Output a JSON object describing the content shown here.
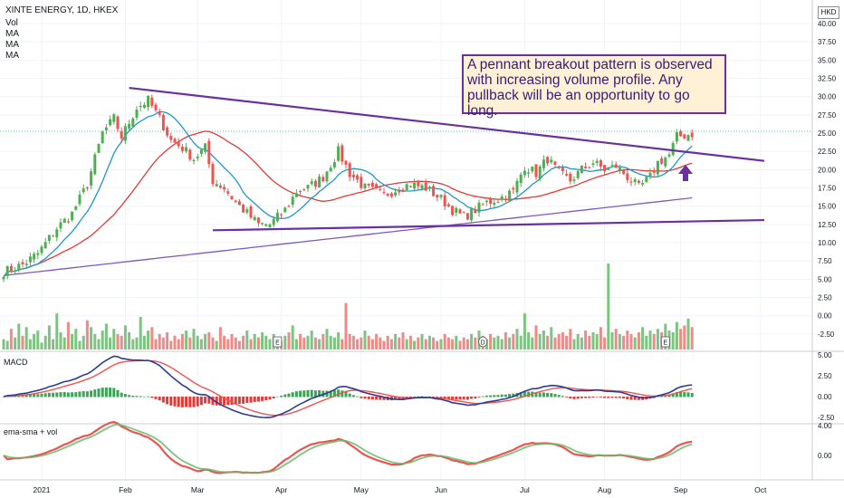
{
  "legend": {
    "symbol": "XINTE ENERGY, 1D, HKEX",
    "vol": "Vol",
    "ma1": "MA",
    "ma2": "MA",
    "ma3": "MA"
  },
  "currency": "HKD",
  "annotation": "A pennant breakout pattern is observed with increasing volume profile. Any pullback will be an opportunity to go long.",
  "panes": {
    "macd": "MACD",
    "ema_sma": "ema-sma + vol"
  },
  "events": [
    "E",
    "D",
    "E"
  ],
  "colors": {
    "up": "#4caf50",
    "down": "#ef5350",
    "ma20": "#2196c9",
    "ma50": "#e53935",
    "ma200": "#7e57c2",
    "trend": "#6a2fa0",
    "macd": "#2a3d93",
    "signal": "#ef5350"
  },
  "chart_data": {
    "type": "candlestick",
    "price_ticks": [
      "40.00",
      "37.50",
      "35.00",
      "32.50",
      "30.00",
      "27.50",
      "25.00",
      "22.50",
      "20.00",
      "17.50",
      "15.00",
      "12.50",
      "10.00",
      "7.50",
      "5.00",
      "2.50",
      "0.00",
      "-2.50"
    ],
    "macd_ticks": [
      "5.00",
      "2.50",
      "0.00",
      "-2.50"
    ],
    "ema_ticks": [
      "4.00",
      "0.00"
    ],
    "months": [
      "2021",
      "Feb",
      "Mar",
      "Apr",
      "May",
      "Jun",
      "Jul",
      "Aug",
      "Sep",
      "Oct"
    ],
    "price_range": [
      -4.5,
      41
    ],
    "keyframes": [
      [
        0,
        6
      ],
      [
        5,
        7
      ],
      [
        9,
        8.5
      ],
      [
        14,
        12
      ],
      [
        18,
        14
      ],
      [
        22,
        18
      ],
      [
        26,
        25
      ],
      [
        29,
        27
      ],
      [
        31,
        24.5
      ],
      [
        35,
        28.5
      ],
      [
        38,
        29.5
      ],
      [
        41,
        27
      ],
      [
        44,
        24
      ],
      [
        47,
        23
      ],
      [
        50,
        21.5
      ],
      [
        53,
        23
      ],
      [
        55,
        18.5
      ],
      [
        58,
        17.5
      ],
      [
        61,
        15.5
      ],
      [
        64,
        14
      ],
      [
        67,
        12.5
      ],
      [
        70,
        12.5
      ],
      [
        74,
        14.5
      ],
      [
        77,
        17
      ],
      [
        80,
        17.5
      ],
      [
        84,
        19
      ],
      [
        88,
        22.5
      ],
      [
        91,
        19.5
      ],
      [
        95,
        17.5
      ],
      [
        100,
        16.5
      ],
      [
        104,
        17.5
      ],
      [
        107,
        18
      ],
      [
        111,
        17.5
      ],
      [
        115,
        16
      ],
      [
        118,
        14.5
      ],
      [
        121,
        13.5
      ],
      [
        124,
        14.5
      ],
      [
        127,
        15.5
      ],
      [
        130,
        16
      ],
      [
        134,
        17
      ],
      [
        137,
        20.5
      ],
      [
        140,
        19.5
      ],
      [
        143,
        21.5
      ],
      [
        146,
        19.5
      ],
      [
        149,
        18.5
      ],
      [
        152,
        20
      ],
      [
        155,
        21
      ],
      [
        158,
        20
      ],
      [
        161,
        20.5
      ],
      [
        164,
        19
      ],
      [
        167,
        17.5
      ],
      [
        170,
        19
      ],
      [
        172,
        21
      ],
      [
        175,
        22
      ],
      [
        177,
        24.5
      ]
    ],
    "volume": [
      0.6,
      0.5,
      1.2,
      0.7,
      1.5,
      0.8,
      1.3,
      0.6,
      0.9,
      1.1,
      0.4,
      0.8,
      1.4,
      0.6,
      2.1,
      1.0,
      0.7,
      1.6,
      0.9,
      1.2,
      0.5,
      0.8,
      1.7,
      1.3,
      0.9,
      0.6,
      1.1,
      1.5,
      0.7,
      1.2,
      0.9,
      0.8,
      1.4,
      1.0,
      0.6,
      0.7,
      1.9,
      0.8,
      1.1,
      1.3,
      0.6,
      0.9,
      0.7,
      1.0,
      0.5,
      0.8,
      0.6,
      0.9,
      1.1,
      0.7,
      1.2,
      0.8,
      0.6,
      0.9,
      1.0,
      0.7,
      0.5,
      1.3,
      0.8,
      0.6,
      0.9,
      0.7,
      0.5,
      0.8,
      1.1,
      0.6,
      0.9,
      0.7,
      1.0,
      0.8,
      0.6,
      0.9,
      0.7,
      0.5,
      0.8,
      1.0,
      1.4,
      0.6,
      0.9,
      0.7,
      0.8,
      1.1,
      0.7,
      0.6,
      0.9,
      1.2,
      0.8,
      0.7,
      1.0,
      0.6,
      2.7,
      0.9,
      0.8,
      0.6,
      0.7,
      1.1,
      0.8,
      0.6,
      0.9,
      0.7,
      0.5,
      0.8,
      0.6,
      0.9,
      0.7,
      1.0,
      0.6,
      0.8,
      0.5,
      0.7,
      0.9,
      0.6,
      0.8,
      0.7,
      0.5,
      0.6,
      0.9,
      0.7,
      0.6,
      0.8,
      0.5,
      0.7,
      0.6,
      0.9,
      0.7,
      1.1,
      0.8,
      0.6,
      0.9,
      0.7,
      0.8,
      0.6,
      1.0,
      0.7,
      0.9,
      1.2,
      0.8,
      2.1,
      1.0,
      0.7,
      1.4,
      0.9,
      1.1,
      0.8,
      1.3,
      0.7,
      0.9,
      1.0,
      0.8,
      1.2,
      0.6,
      0.9,
      0.7,
      1.1,
      0.8,
      1.0,
      0.9,
      1.3,
      0.7,
      5.0,
      1.0,
      1.2,
      0.9,
      0.8,
      1.1,
      0.9,
      0.7,
      1.0,
      1.3,
      0.8,
      1.1,
      0.9,
      1.2,
      1.0,
      1.5,
      1.1,
      1.0,
      1.6,
      1.2,
      1.4,
      1.8,
      1.3
    ],
    "trendlines": [
      {
        "name": "upper",
        "from": [
          33,
          31.2
        ],
        "to": [
          200,
          21.2
        ]
      },
      {
        "name": "lower",
        "from": [
          55,
          11.7
        ],
        "to": [
          200,
          13.1
        ]
      }
    ]
  }
}
